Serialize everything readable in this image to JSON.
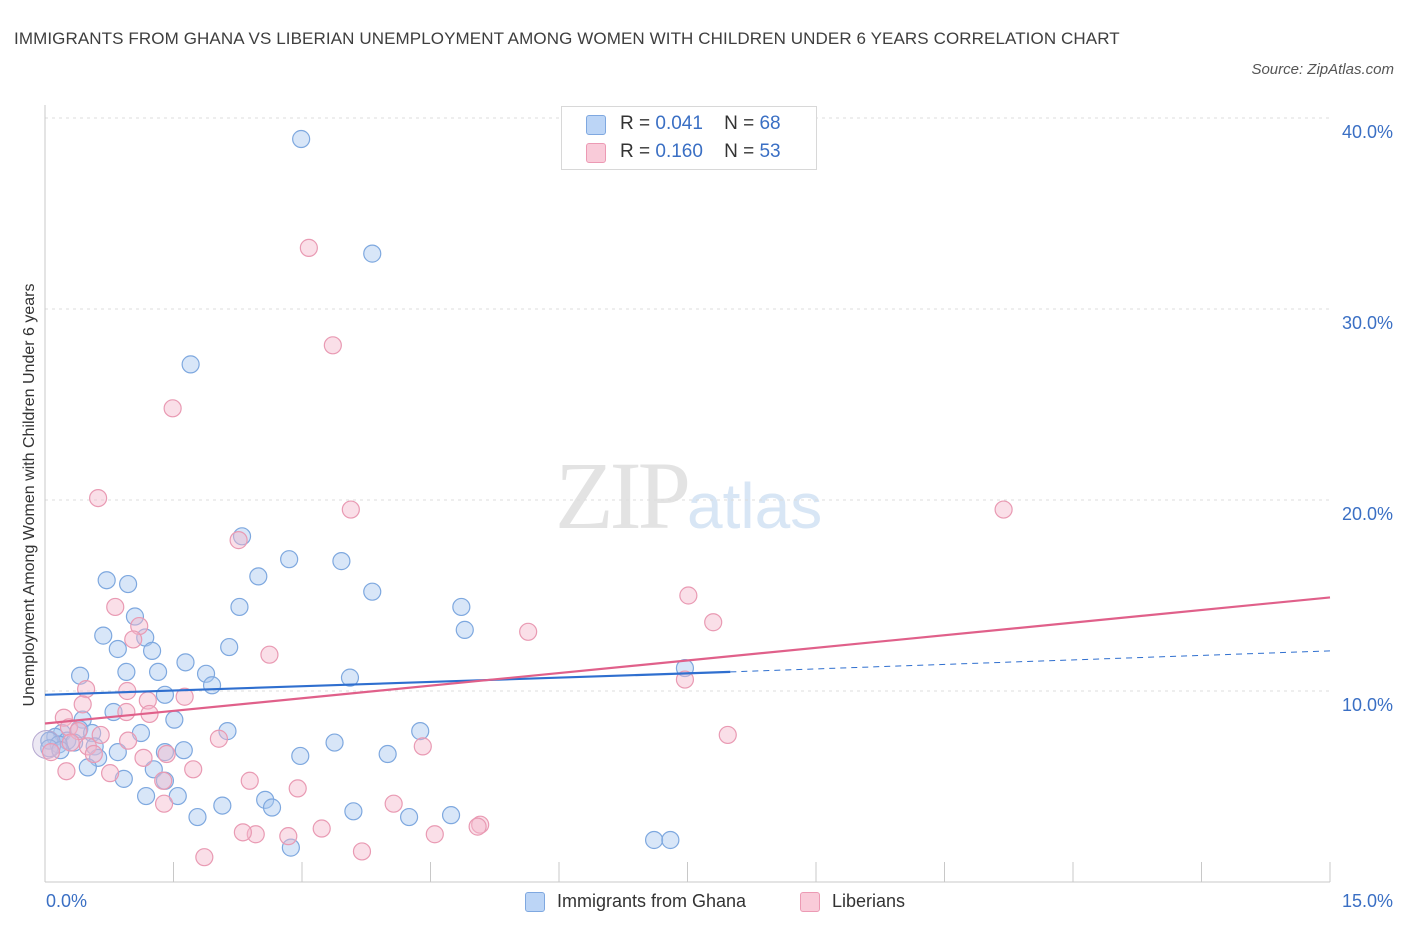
{
  "title": "IMMIGRANTS FROM GHANA VS LIBERIAN UNEMPLOYMENT AMONG WOMEN WITH CHILDREN UNDER 6 YEARS CORRELATION CHART",
  "source": "Source: ZipAtlas.com",
  "watermark": {
    "zip": "ZIP",
    "atlas": "atlas"
  },
  "colors": {
    "ghana": "#a9c8f0",
    "ghana_line": "#2f6fcf",
    "liberian": "#f5b8cb",
    "liberian_line": "#e0608a",
    "tick": "#3a6fc4"
  },
  "legend": {
    "rows": [
      {
        "r_label": "R =",
        "r_value": "0.041",
        "n_label": "N =",
        "n_value": "68"
      },
      {
        "r_label": "R =",
        "r_value": "0.160",
        "n_label": "N =",
        "n_value": "53"
      }
    ]
  },
  "bottom_legend": [
    "Immigrants from Ghana",
    "Liberians"
  ],
  "chart_data": {
    "type": "scatter",
    "title": "IMMIGRANTS FROM GHANA VS LIBERIAN UNEMPLOYMENT AMONG WOMEN WITH CHILDREN UNDER 6 YEARS CORRELATION CHART",
    "xlabel": "",
    "ylabel": "Unemployment Among Women with Children Under 6 years",
    "xlim": [
      0,
      15
    ],
    "ylim": [
      0,
      40
    ],
    "x_tick_labels": [
      "0.0%",
      "15.0%"
    ],
    "y_tick_labels": [
      "10.0%",
      "20.0%",
      "30.0%",
      "40.0%"
    ],
    "y_ticks": [
      10,
      20,
      30,
      40
    ],
    "grid": true,
    "legend_position": "top-center",
    "series": [
      {
        "name": "Immigrants from Ghana",
        "R": 0.041,
        "N": 68,
        "trend": {
          "x": [
            0,
            8
          ],
          "y": [
            9.8,
            11.0
          ],
          "dashed_to": [
            15,
            12.1
          ]
        },
        "points": [
          [
            2.99,
            38.9
          ],
          [
            3.82,
            32.9
          ],
          [
            1.7,
            27.1
          ],
          [
            2.3,
            18.1
          ],
          [
            2.85,
            16.9
          ],
          [
            3.46,
            16.8
          ],
          [
            0.72,
            15.8
          ],
          [
            0.97,
            15.6
          ],
          [
            2.49,
            16.0
          ],
          [
            3.82,
            15.2
          ],
          [
            2.27,
            14.4
          ],
          [
            4.86,
            14.4
          ],
          [
            1.05,
            13.9
          ],
          [
            0.68,
            12.9
          ],
          [
            1.17,
            12.8
          ],
          [
            4.9,
            13.2
          ],
          [
            0.85,
            12.2
          ],
          [
            1.25,
            12.1
          ],
          [
            2.15,
            12.3
          ],
          [
            0.41,
            10.8
          ],
          [
            1.64,
            11.5
          ],
          [
            0.95,
            11.0
          ],
          [
            1.32,
            11.0
          ],
          [
            1.88,
            10.9
          ],
          [
            1.95,
            10.3
          ],
          [
            3.56,
            10.7
          ],
          [
            7.47,
            11.2
          ],
          [
            1.4,
            9.8
          ],
          [
            0.8,
            8.9
          ],
          [
            0.44,
            8.5
          ],
          [
            1.51,
            8.5
          ],
          [
            0.4,
            8.0
          ],
          [
            0.2,
            7.8
          ],
          [
            0.55,
            7.8
          ],
          [
            1.12,
            7.8
          ],
          [
            2.13,
            7.9
          ],
          [
            4.38,
            7.9
          ],
          [
            0.12,
            7.6
          ],
          [
            0.05,
            7.4
          ],
          [
            0.26,
            7.4
          ],
          [
            0.34,
            7.3
          ],
          [
            0.16,
            7.2
          ],
          [
            0.58,
            7.1
          ],
          [
            0.05,
            7.0
          ],
          [
            3.38,
            7.3
          ],
          [
            1.62,
            6.9
          ],
          [
            1.4,
            6.8
          ],
          [
            0.85,
            6.8
          ],
          [
            0.62,
            6.5
          ],
          [
            2.98,
            6.6
          ],
          [
            4.0,
            6.7
          ],
          [
            0.18,
            6.9
          ],
          [
            0.5,
            6.0
          ],
          [
            1.27,
            5.9
          ],
          [
            0.92,
            5.4
          ],
          [
            1.4,
            5.3
          ],
          [
            1.55,
            4.5
          ],
          [
            1.18,
            4.5
          ],
          [
            2.57,
            4.3
          ],
          [
            2.65,
            3.9
          ],
          [
            2.07,
            4.0
          ],
          [
            3.6,
            3.7
          ],
          [
            1.78,
            3.4
          ],
          [
            4.25,
            3.4
          ],
          [
            4.74,
            3.5
          ],
          [
            2.87,
            1.8
          ],
          [
            7.11,
            2.2
          ],
          [
            7.3,
            2.2
          ]
        ]
      },
      {
        "name": "Liberians",
        "R": 0.16,
        "N": 53,
        "trend": {
          "x": [
            0,
            15
          ],
          "y": [
            8.3,
            14.9
          ]
        },
        "points": [
          [
            3.08,
            33.2
          ],
          [
            3.36,
            28.1
          ],
          [
            1.49,
            24.8
          ],
          [
            0.62,
            20.1
          ],
          [
            3.57,
            19.5
          ],
          [
            11.19,
            19.5
          ],
          [
            2.26,
            17.9
          ],
          [
            7.51,
            15.0
          ],
          [
            0.82,
            14.4
          ],
          [
            7.8,
            13.6
          ],
          [
            1.1,
            13.4
          ],
          [
            5.64,
            13.1
          ],
          [
            1.03,
            12.7
          ],
          [
            2.62,
            11.9
          ],
          [
            7.47,
            10.6
          ],
          [
            0.48,
            10.1
          ],
          [
            0.96,
            10.0
          ],
          [
            1.63,
            9.7
          ],
          [
            0.44,
            9.3
          ],
          [
            1.2,
            9.5
          ],
          [
            0.95,
            8.9
          ],
          [
            1.22,
            8.8
          ],
          [
            0.22,
            8.6
          ],
          [
            0.28,
            8.1
          ],
          [
            0.39,
            7.9
          ],
          [
            0.65,
            7.7
          ],
          [
            2.03,
            7.5
          ],
          [
            0.97,
            7.4
          ],
          [
            7.97,
            7.7
          ],
          [
            0.3,
            7.3
          ],
          [
            0.5,
            7.1
          ],
          [
            4.41,
            7.1
          ],
          [
            1.15,
            6.5
          ],
          [
            1.42,
            6.7
          ],
          [
            0.57,
            6.7
          ],
          [
            0.25,
            5.8
          ],
          [
            0.76,
            5.7
          ],
          [
            1.73,
            5.9
          ],
          [
            1.38,
            5.3
          ],
          [
            2.39,
            5.3
          ],
          [
            2.95,
            4.9
          ],
          [
            1.39,
            4.1
          ],
          [
            4.07,
            4.1
          ],
          [
            2.46,
            2.5
          ],
          [
            2.84,
            2.4
          ],
          [
            3.23,
            2.8
          ],
          [
            2.31,
            2.6
          ],
          [
            4.55,
            2.5
          ],
          [
            5.08,
            3.0
          ],
          [
            5.05,
            2.9
          ],
          [
            3.7,
            1.6
          ],
          [
            1.86,
            1.3
          ],
          [
            0.07,
            6.8
          ]
        ]
      }
    ]
  }
}
